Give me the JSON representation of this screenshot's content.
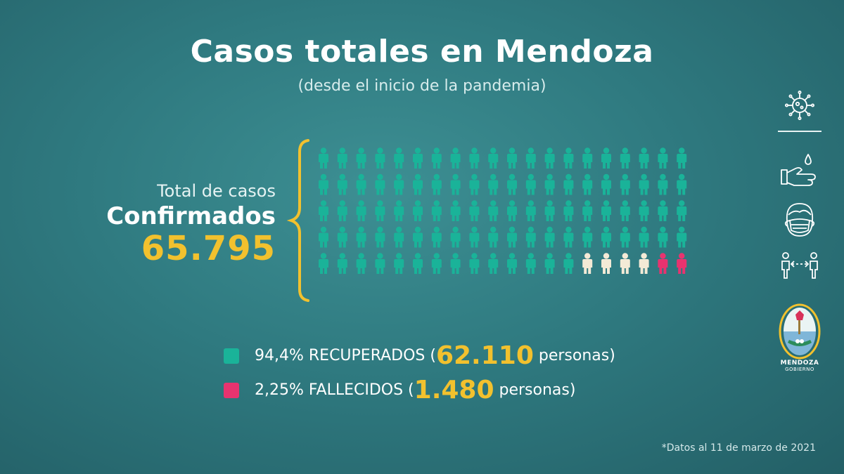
{
  "header": {
    "title": "Casos totales en Mendoza",
    "subtitle": "(desde el inicio de la pandemia)"
  },
  "total": {
    "label_top": "Total de casos",
    "label_main": "Confirmados",
    "value": "65.795"
  },
  "legend": [
    {
      "pre": "94,4% RECUPERADOS (",
      "num": "62.110",
      "post": " personas)",
      "color": "#1ab399"
    },
    {
      "pre": "2,25% FALLECIDOS (",
      "num": "1.480",
      "post": " personas)",
      "color": "#e8336f"
    }
  ],
  "footnote": "*Datos al 11 de marzo de 2021",
  "logo": {
    "name": "MENDOZA",
    "sub": "GOBIERNO"
  },
  "icons": [
    "virus-icon",
    "hand-wash-icon",
    "face-mask-icon",
    "social-distance-icon"
  ],
  "colors": {
    "recovered": "#1ab399",
    "other": "#f3ead6",
    "deceased": "#e8336f",
    "accent": "#f2c12e"
  },
  "chart_data": {
    "type": "pictogram",
    "total_icons": 100,
    "rows": 5,
    "columns": 20,
    "series": [
      {
        "name": "RECUPERADOS",
        "icons": 94,
        "percent": 94.4,
        "persons": 62110
      },
      {
        "name": "",
        "icons": 4
      },
      {
        "name": "FALLECIDOS",
        "icons": 2,
        "percent": 2.25,
        "persons": 1480
      }
    ],
    "total_confirmed": 65795
  }
}
